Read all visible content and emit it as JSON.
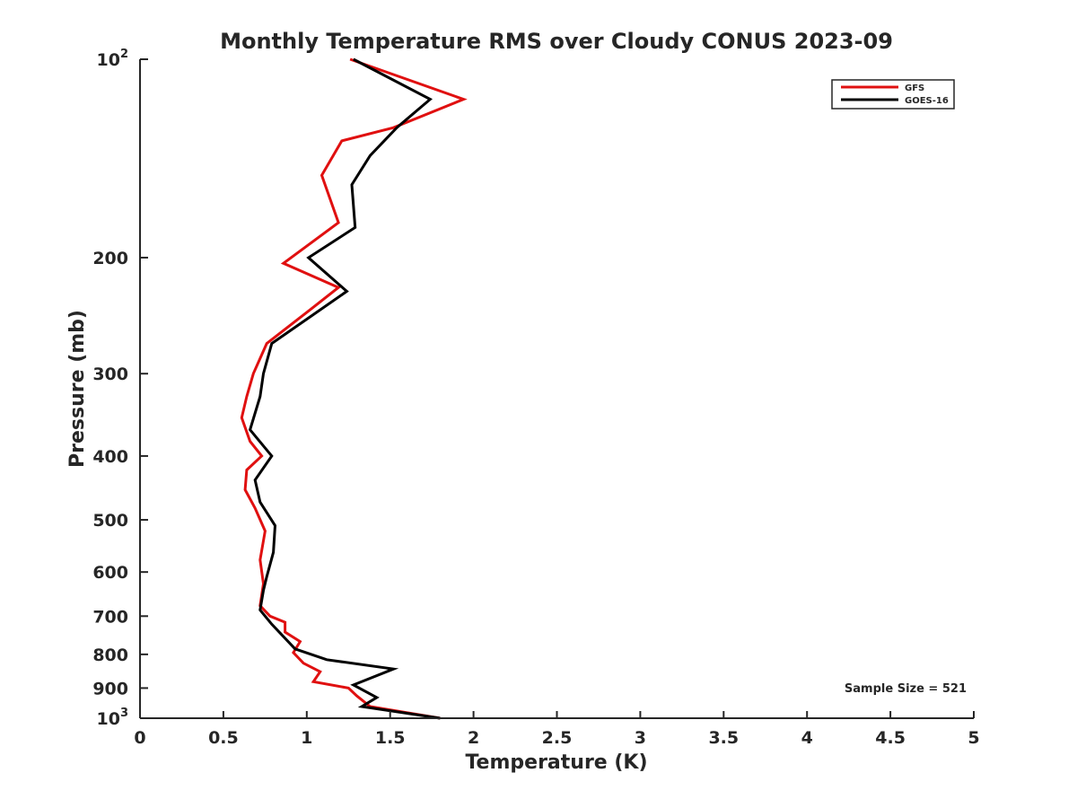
{
  "chart_data": {
    "type": "line",
    "title": "Monthly Temperature RMS over Cloudy CONUS  2023-09",
    "xlabel": "Temperature (K)",
    "ylabel": "Pressure (mb)",
    "xlim": [
      0,
      5
    ],
    "ylim": [
      100,
      1000
    ],
    "y_scale": "log",
    "y_reversed": true,
    "grid": false,
    "legend_position": "top-right",
    "x_ticks": [
      {
        "value": 0,
        "label": "0"
      },
      {
        "value": 0.5,
        "label": "0.5"
      },
      {
        "value": 1,
        "label": "1"
      },
      {
        "value": 1.5,
        "label": "1.5"
      },
      {
        "value": 2,
        "label": "2"
      },
      {
        "value": 2.5,
        "label": "2.5"
      },
      {
        "value": 3,
        "label": "3"
      },
      {
        "value": 3.5,
        "label": "3.5"
      },
      {
        "value": 4,
        "label": "4"
      },
      {
        "value": 4.5,
        "label": "4.5"
      },
      {
        "value": 5,
        "label": "5"
      }
    ],
    "y_ticks": [
      {
        "value": 100,
        "base": "10",
        "exp": "2"
      },
      {
        "value": 200,
        "label": "200"
      },
      {
        "value": 300,
        "label": "300"
      },
      {
        "value": 400,
        "label": "400"
      },
      {
        "value": 500,
        "label": "500"
      },
      {
        "value": 600,
        "label": "600"
      },
      {
        "value": 700,
        "label": "700"
      },
      {
        "value": 800,
        "label": "800"
      },
      {
        "value": 900,
        "label": "900"
      },
      {
        "value": 1000,
        "base": "10",
        "exp": "3"
      }
    ],
    "series": [
      {
        "name": "GFS",
        "color": "#e01010",
        "points": [
          {
            "x": 1.26,
            "y": 100
          },
          {
            "x": 1.94,
            "y": 115
          },
          {
            "x": 1.52,
            "y": 127
          },
          {
            "x": 1.21,
            "y": 133
          },
          {
            "x": 1.09,
            "y": 150
          },
          {
            "x": 1.19,
            "y": 177
          },
          {
            "x": 0.86,
            "y": 204
          },
          {
            "x": 1.19,
            "y": 222
          },
          {
            "x": 1.02,
            "y": 240
          },
          {
            "x": 0.76,
            "y": 270
          },
          {
            "x": 0.68,
            "y": 300
          },
          {
            "x": 0.64,
            "y": 325
          },
          {
            "x": 0.61,
            "y": 350
          },
          {
            "x": 0.66,
            "y": 380
          },
          {
            "x": 0.73,
            "y": 400
          },
          {
            "x": 0.64,
            "y": 420
          },
          {
            "x": 0.63,
            "y": 450
          },
          {
            "x": 0.69,
            "y": 480
          },
          {
            "x": 0.75,
            "y": 520
          },
          {
            "x": 0.72,
            "y": 575
          },
          {
            "x": 0.74,
            "y": 625
          },
          {
            "x": 0.72,
            "y": 675
          },
          {
            "x": 0.78,
            "y": 700
          },
          {
            "x": 0.87,
            "y": 715
          },
          {
            "x": 0.87,
            "y": 740
          },
          {
            "x": 0.96,
            "y": 765
          },
          {
            "x": 0.92,
            "y": 795
          },
          {
            "x": 0.98,
            "y": 825
          },
          {
            "x": 1.08,
            "y": 850
          },
          {
            "x": 1.04,
            "y": 880
          },
          {
            "x": 1.25,
            "y": 900
          },
          {
            "x": 1.3,
            "y": 925
          },
          {
            "x": 1.38,
            "y": 960
          },
          {
            "x": 1.8,
            "y": 1000
          }
        ]
      },
      {
        "name": "GOES-16",
        "color": "#000000",
        "points": [
          {
            "x": 1.28,
            "y": 100
          },
          {
            "x": 1.74,
            "y": 115
          },
          {
            "x": 1.54,
            "y": 127
          },
          {
            "x": 1.38,
            "y": 140
          },
          {
            "x": 1.27,
            "y": 155
          },
          {
            "x": 1.29,
            "y": 180
          },
          {
            "x": 1.01,
            "y": 200
          },
          {
            "x": 1.24,
            "y": 225
          },
          {
            "x": 1.03,
            "y": 245
          },
          {
            "x": 0.79,
            "y": 270
          },
          {
            "x": 0.74,
            "y": 300
          },
          {
            "x": 0.72,
            "y": 325
          },
          {
            "x": 0.66,
            "y": 365
          },
          {
            "x": 0.79,
            "y": 400
          },
          {
            "x": 0.69,
            "y": 435
          },
          {
            "x": 0.72,
            "y": 470
          },
          {
            "x": 0.81,
            "y": 510
          },
          {
            "x": 0.8,
            "y": 560
          },
          {
            "x": 0.76,
            "y": 610
          },
          {
            "x": 0.74,
            "y": 640
          },
          {
            "x": 0.72,
            "y": 685
          },
          {
            "x": 0.79,
            "y": 720
          },
          {
            "x": 0.93,
            "y": 785
          },
          {
            "x": 1.12,
            "y": 815
          },
          {
            "x": 1.52,
            "y": 842
          },
          {
            "x": 1.28,
            "y": 890
          },
          {
            "x": 1.42,
            "y": 930
          },
          {
            "x": 1.33,
            "y": 960
          },
          {
            "x": 1.8,
            "y": 1000
          }
        ]
      }
    ],
    "annotations": [
      {
        "text": "Sample Size = 521",
        "position": "bottom-right"
      }
    ]
  }
}
